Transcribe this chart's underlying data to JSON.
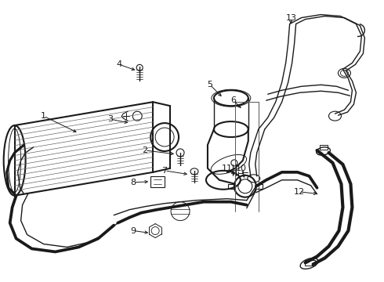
{
  "bg_color": "#ffffff",
  "line_color": "#1a1a1a",
  "lw": 1.0,
  "fig_width": 4.9,
  "fig_height": 3.6,
  "dpi": 100
}
